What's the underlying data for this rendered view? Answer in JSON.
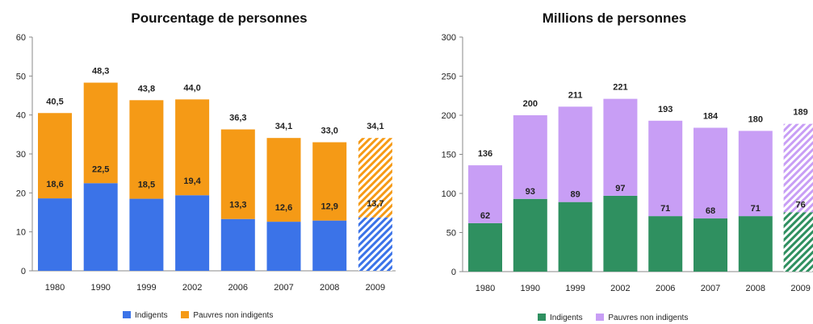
{
  "colors": {
    "left_bottom": "#3b73e8",
    "left_top": "#f59a16",
    "right_bottom": "#2f9060",
    "right_top": "#c89ef5"
  },
  "chart_data": [
    {
      "type": "bar",
      "stacked": true,
      "title": "Pourcentage de personnes",
      "categories": [
        "1980",
        "1990",
        "1999",
        "2002",
        "2006",
        "2007",
        "2008",
        "2009"
      ],
      "ylim": [
        0,
        60
      ],
      "yticks": [
        0,
        10,
        20,
        30,
        40,
        50,
        60
      ],
      "series": [
        {
          "name": "Indigents",
          "values": [
            18.6,
            22.5,
            18.5,
            19.4,
            13.3,
            12.6,
            12.9,
            13.7
          ],
          "labels": [
            "18,6",
            "22,5",
            "18,5",
            "19,4",
            "13,3",
            "12,6",
            "12,9",
            "13,7"
          ]
        },
        {
          "name": "Pauvres non indigents",
          "values": [
            21.9,
            25.8,
            25.3,
            24.6,
            23.0,
            21.5,
            20.1,
            20.4
          ]
        }
      ],
      "totals": [
        40.5,
        48.3,
        43.8,
        44.0,
        36.3,
        34.1,
        33.0,
        34.1
      ],
      "total_labels": [
        "40,5",
        "48,3",
        "43,8",
        "44,0",
        "36,3",
        "34,1",
        "33,0",
        "34,1"
      ],
      "hatched_categories": [
        "2009"
      ],
      "legend": "bottom",
      "grid": false
    },
    {
      "type": "bar",
      "stacked": true,
      "title": "Millions de personnes",
      "categories": [
        "1980",
        "1990",
        "1999",
        "2002",
        "2006",
        "2007",
        "2008",
        "2009"
      ],
      "ylim": [
        0,
        300
      ],
      "yticks": [
        0,
        50,
        100,
        150,
        200,
        250,
        300
      ],
      "series": [
        {
          "name": "Indigents",
          "values": [
            62,
            93,
            89,
            97,
            71,
            68,
            71,
            76
          ],
          "labels": [
            "62",
            "93",
            "89",
            "97",
            "71",
            "68",
            "71",
            "76"
          ]
        },
        {
          "name": "Pauvres non indigents",
          "values": [
            74,
            107,
            122,
            124,
            122,
            116,
            109,
            113
          ]
        }
      ],
      "totals": [
        136,
        200,
        211,
        221,
        193,
        184,
        180,
        189
      ],
      "total_labels": [
        "136",
        "200",
        "211",
        "221",
        "193",
        "184",
        "180",
        "189"
      ],
      "hatched_categories": [
        "2009"
      ],
      "legend": "bottom",
      "grid": false
    }
  ]
}
